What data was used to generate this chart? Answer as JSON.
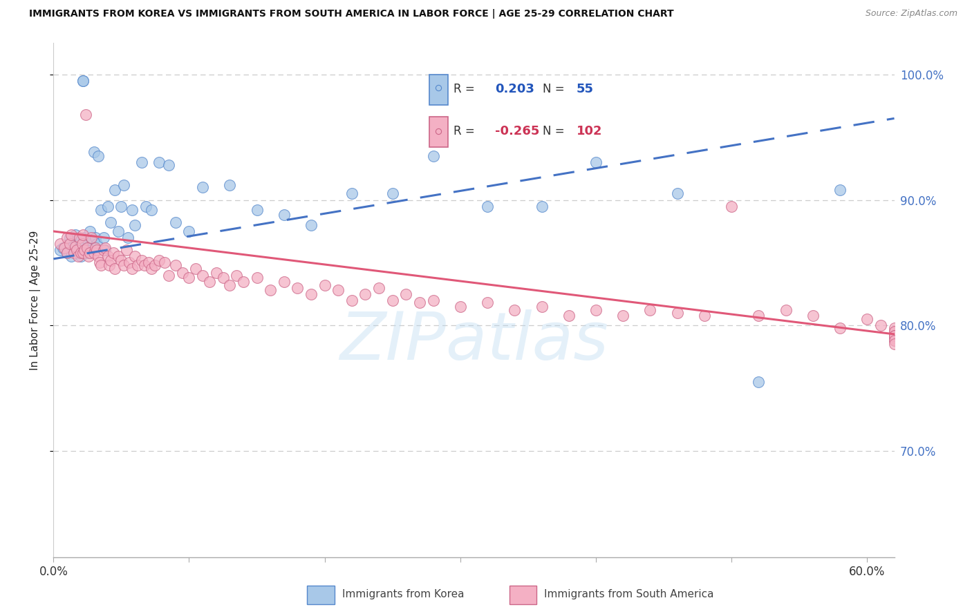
{
  "title": "IMMIGRANTS FROM KOREA VS IMMIGRANTS FROM SOUTH AMERICA IN LABOR FORCE | AGE 25-29 CORRELATION CHART",
  "source": "Source: ZipAtlas.com",
  "ylabel": "In Labor Force | Age 25-29",
  "xlim": [
    0.0,
    0.62
  ],
  "ylim": [
    0.615,
    1.025
  ],
  "ytick_vals": [
    0.7,
    0.8,
    0.9,
    1.0
  ],
  "ytick_labels": [
    "70.0%",
    "80.0%",
    "90.0%",
    "100.0%"
  ],
  "xtick_vals": [
    0.0,
    0.1,
    0.2,
    0.3,
    0.4,
    0.5,
    0.6
  ],
  "xtick_left_label": "0.0%",
  "xtick_right_label": "60.0%",
  "legend_R_korea": "0.203",
  "legend_N_korea": "55",
  "legend_R_south": "-0.265",
  "legend_N_south": "102",
  "color_korea_fill": "#a8c8e8",
  "color_korea_edge": "#5588cc",
  "color_south_fill": "#f4b0c4",
  "color_south_edge": "#cc6688",
  "color_korea_line": "#4472c4",
  "color_south_line": "#e05878",
  "korea_trend_x0": 0.0,
  "korea_trend_x1": 0.62,
  "korea_trend_y0": 0.853,
  "korea_trend_y1": 0.965,
  "south_trend_x0": 0.0,
  "south_trend_x1": 0.62,
  "south_trend_y0": 0.875,
  "south_trend_y1": 0.793,
  "watermark_text": "ZIPatlas",
  "grid_color": "#cccccc",
  "bottom_legend_label1": "Immigrants from Korea",
  "bottom_legend_label2": "Immigrants from South America",
  "korea_x": [
    0.005,
    0.007,
    0.01,
    0.012,
    0.013,
    0.015,
    0.016,
    0.018,
    0.019,
    0.02,
    0.02,
    0.022,
    0.022,
    0.023,
    0.025,
    0.025,
    0.027,
    0.028,
    0.03,
    0.031,
    0.032,
    0.033,
    0.035,
    0.037,
    0.038,
    0.04,
    0.042,
    0.045,
    0.048,
    0.05,
    0.052,
    0.055,
    0.058,
    0.06,
    0.065,
    0.068,
    0.072,
    0.078,
    0.085,
    0.09,
    0.1,
    0.11,
    0.13,
    0.15,
    0.17,
    0.19,
    0.22,
    0.25,
    0.28,
    0.32,
    0.36,
    0.4,
    0.46,
    0.52,
    0.58
  ],
  "korea_y": [
    0.86,
    0.862,
    0.858,
    0.87,
    0.855,
    0.865,
    0.872,
    0.858,
    0.863,
    0.868,
    0.855,
    0.995,
    0.995,
    0.87,
    0.862,
    0.858,
    0.875,
    0.868,
    0.938,
    0.87,
    0.865,
    0.935,
    0.892,
    0.87,
    0.86,
    0.895,
    0.882,
    0.908,
    0.875,
    0.895,
    0.912,
    0.87,
    0.892,
    0.88,
    0.93,
    0.895,
    0.892,
    0.93,
    0.928,
    0.882,
    0.875,
    0.91,
    0.912,
    0.892,
    0.888,
    0.88,
    0.905,
    0.905,
    0.935,
    0.895,
    0.895,
    0.93,
    0.905,
    0.755,
    0.908
  ],
  "south_x": [
    0.005,
    0.008,
    0.01,
    0.01,
    0.012,
    0.013,
    0.015,
    0.016,
    0.017,
    0.018,
    0.019,
    0.02,
    0.021,
    0.022,
    0.022,
    0.023,
    0.024,
    0.025,
    0.026,
    0.027,
    0.028,
    0.03,
    0.031,
    0.032,
    0.033,
    0.034,
    0.035,
    0.037,
    0.038,
    0.04,
    0.041,
    0.042,
    0.044,
    0.045,
    0.048,
    0.05,
    0.052,
    0.054,
    0.056,
    0.058,
    0.06,
    0.062,
    0.065,
    0.067,
    0.07,
    0.072,
    0.075,
    0.078,
    0.082,
    0.085,
    0.09,
    0.095,
    0.1,
    0.105,
    0.11,
    0.115,
    0.12,
    0.125,
    0.13,
    0.135,
    0.14,
    0.15,
    0.16,
    0.17,
    0.18,
    0.19,
    0.2,
    0.21,
    0.22,
    0.23,
    0.24,
    0.25,
    0.26,
    0.27,
    0.28,
    0.3,
    0.32,
    0.34,
    0.36,
    0.38,
    0.4,
    0.42,
    0.44,
    0.46,
    0.48,
    0.5,
    0.52,
    0.54,
    0.56,
    0.58,
    0.6,
    0.61,
    0.62,
    0.63,
    0.64,
    0.65,
    0.66,
    0.67,
    0.68,
    0.69,
    0.7,
    0.71
  ],
  "south_y": [
    0.865,
    0.862,
    0.87,
    0.858,
    0.865,
    0.872,
    0.858,
    0.863,
    0.86,
    0.855,
    0.87,
    0.858,
    0.865,
    0.872,
    0.858,
    0.86,
    0.968,
    0.862,
    0.855,
    0.858,
    0.87,
    0.858,
    0.862,
    0.86,
    0.855,
    0.85,
    0.848,
    0.86,
    0.862,
    0.855,
    0.848,
    0.852,
    0.858,
    0.845,
    0.855,
    0.852,
    0.848,
    0.86,
    0.85,
    0.845,
    0.855,
    0.848,
    0.852,
    0.848,
    0.85,
    0.845,
    0.848,
    0.852,
    0.85,
    0.84,
    0.848,
    0.842,
    0.838,
    0.845,
    0.84,
    0.835,
    0.842,
    0.838,
    0.832,
    0.84,
    0.835,
    0.838,
    0.828,
    0.835,
    0.83,
    0.825,
    0.832,
    0.828,
    0.82,
    0.825,
    0.83,
    0.82,
    0.825,
    0.818,
    0.82,
    0.815,
    0.818,
    0.812,
    0.815,
    0.808,
    0.812,
    0.808,
    0.812,
    0.81,
    0.808,
    0.895,
    0.808,
    0.812,
    0.808,
    0.798,
    0.805,
    0.8,
    0.795,
    0.792,
    0.798,
    0.79,
    0.795,
    0.792,
    0.788,
    0.792,
    0.788,
    0.785
  ]
}
